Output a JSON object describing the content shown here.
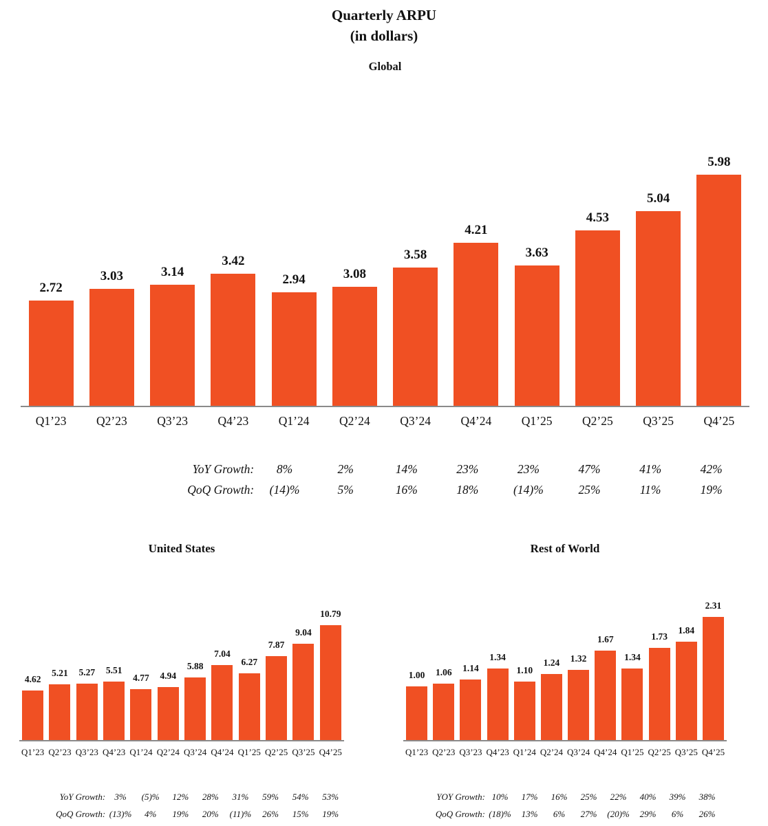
{
  "title": {
    "line1": "Quarterly ARPU",
    "line2": "(in dollars)"
  },
  "colors": {
    "bar": "#F05023",
    "axis_line": "#8a8a8a",
    "text": "#111111",
    "background": "#ffffff"
  },
  "chart_data": [
    {
      "id": "global",
      "type": "bar",
      "title": "Global",
      "unit": "dollars",
      "categories": [
        "Q1’23",
        "Q2’23",
        "Q3’23",
        "Q4’23",
        "Q1’24",
        "Q2’24",
        "Q3’24",
        "Q4’24",
        "Q1’25",
        "Q2’25",
        "Q3’25",
        "Q4’25"
      ],
      "values": [
        2.72,
        3.03,
        3.14,
        3.42,
        2.94,
        3.08,
        3.58,
        4.21,
        3.63,
        4.53,
        5.04,
        5.98
      ],
      "ylim": [
        0,
        6.7
      ],
      "grid": false,
      "legend": false,
      "growth": [
        {
          "label": "YoY Growth:",
          "values": [
            "8%",
            "2%",
            "14%",
            "23%",
            "23%",
            "47%",
            "41%",
            "42%"
          ]
        },
        {
          "label": "QoQ Growth:",
          "values": [
            "(14)%",
            "5%",
            "16%",
            "18%",
            "(14)%",
            "25%",
            "11%",
            "19%"
          ]
        }
      ]
    },
    {
      "id": "united-states",
      "type": "bar",
      "title": "United States",
      "unit": "dollars",
      "categories": [
        "Q1’23",
        "Q2’23",
        "Q3’23",
        "Q4’23",
        "Q1’24",
        "Q2’24",
        "Q3’24",
        "Q4’24",
        "Q1’25",
        "Q2’25",
        "Q3’25",
        "Q4’25"
      ],
      "values": [
        4.62,
        5.21,
        5.27,
        5.51,
        4.77,
        4.94,
        5.88,
        7.04,
        6.27,
        7.87,
        9.04,
        10.79
      ],
      "ylim": [
        0,
        14
      ],
      "grid": false,
      "legend": false,
      "growth": [
        {
          "label": "YoY Growth:",
          "values": [
            "3%",
            "(5)%",
            "12%",
            "28%",
            "31%",
            "59%",
            "54%",
            "53%"
          ]
        },
        {
          "label": "QoQ Growth:",
          "values": [
            "(13)%",
            "4%",
            "19%",
            "20%",
            "(11)%",
            "26%",
            "15%",
            "19%"
          ]
        }
      ]
    },
    {
      "id": "rest-of-world",
      "type": "bar",
      "title": "Rest of World",
      "unit": "dollars",
      "categories": [
        "Q1’23",
        "Q2’23",
        "Q3’23",
        "Q4’23",
        "Q1’24",
        "Q2’24",
        "Q3’24",
        "Q4’24",
        "Q1’25",
        "Q2’25",
        "Q3’25",
        "Q4’25"
      ],
      "values": [
        1.0,
        1.06,
        1.14,
        1.34,
        1.1,
        1.24,
        1.32,
        1.67,
        1.34,
        1.73,
        1.84,
        2.31
      ],
      "ylim": [
        0,
        2.8
      ],
      "grid": false,
      "legend": false,
      "growth": [
        {
          "label": "YOY Growth:",
          "values": [
            "10%",
            "17%",
            "16%",
            "25%",
            "22%",
            "40%",
            "39%",
            "38%"
          ]
        },
        {
          "label": "QoQ Growth:",
          "values": [
            "(18)%",
            "13%",
            "6%",
            "27%",
            "(20)%",
            "29%",
            "6%",
            "26%"
          ]
        }
      ]
    }
  ]
}
